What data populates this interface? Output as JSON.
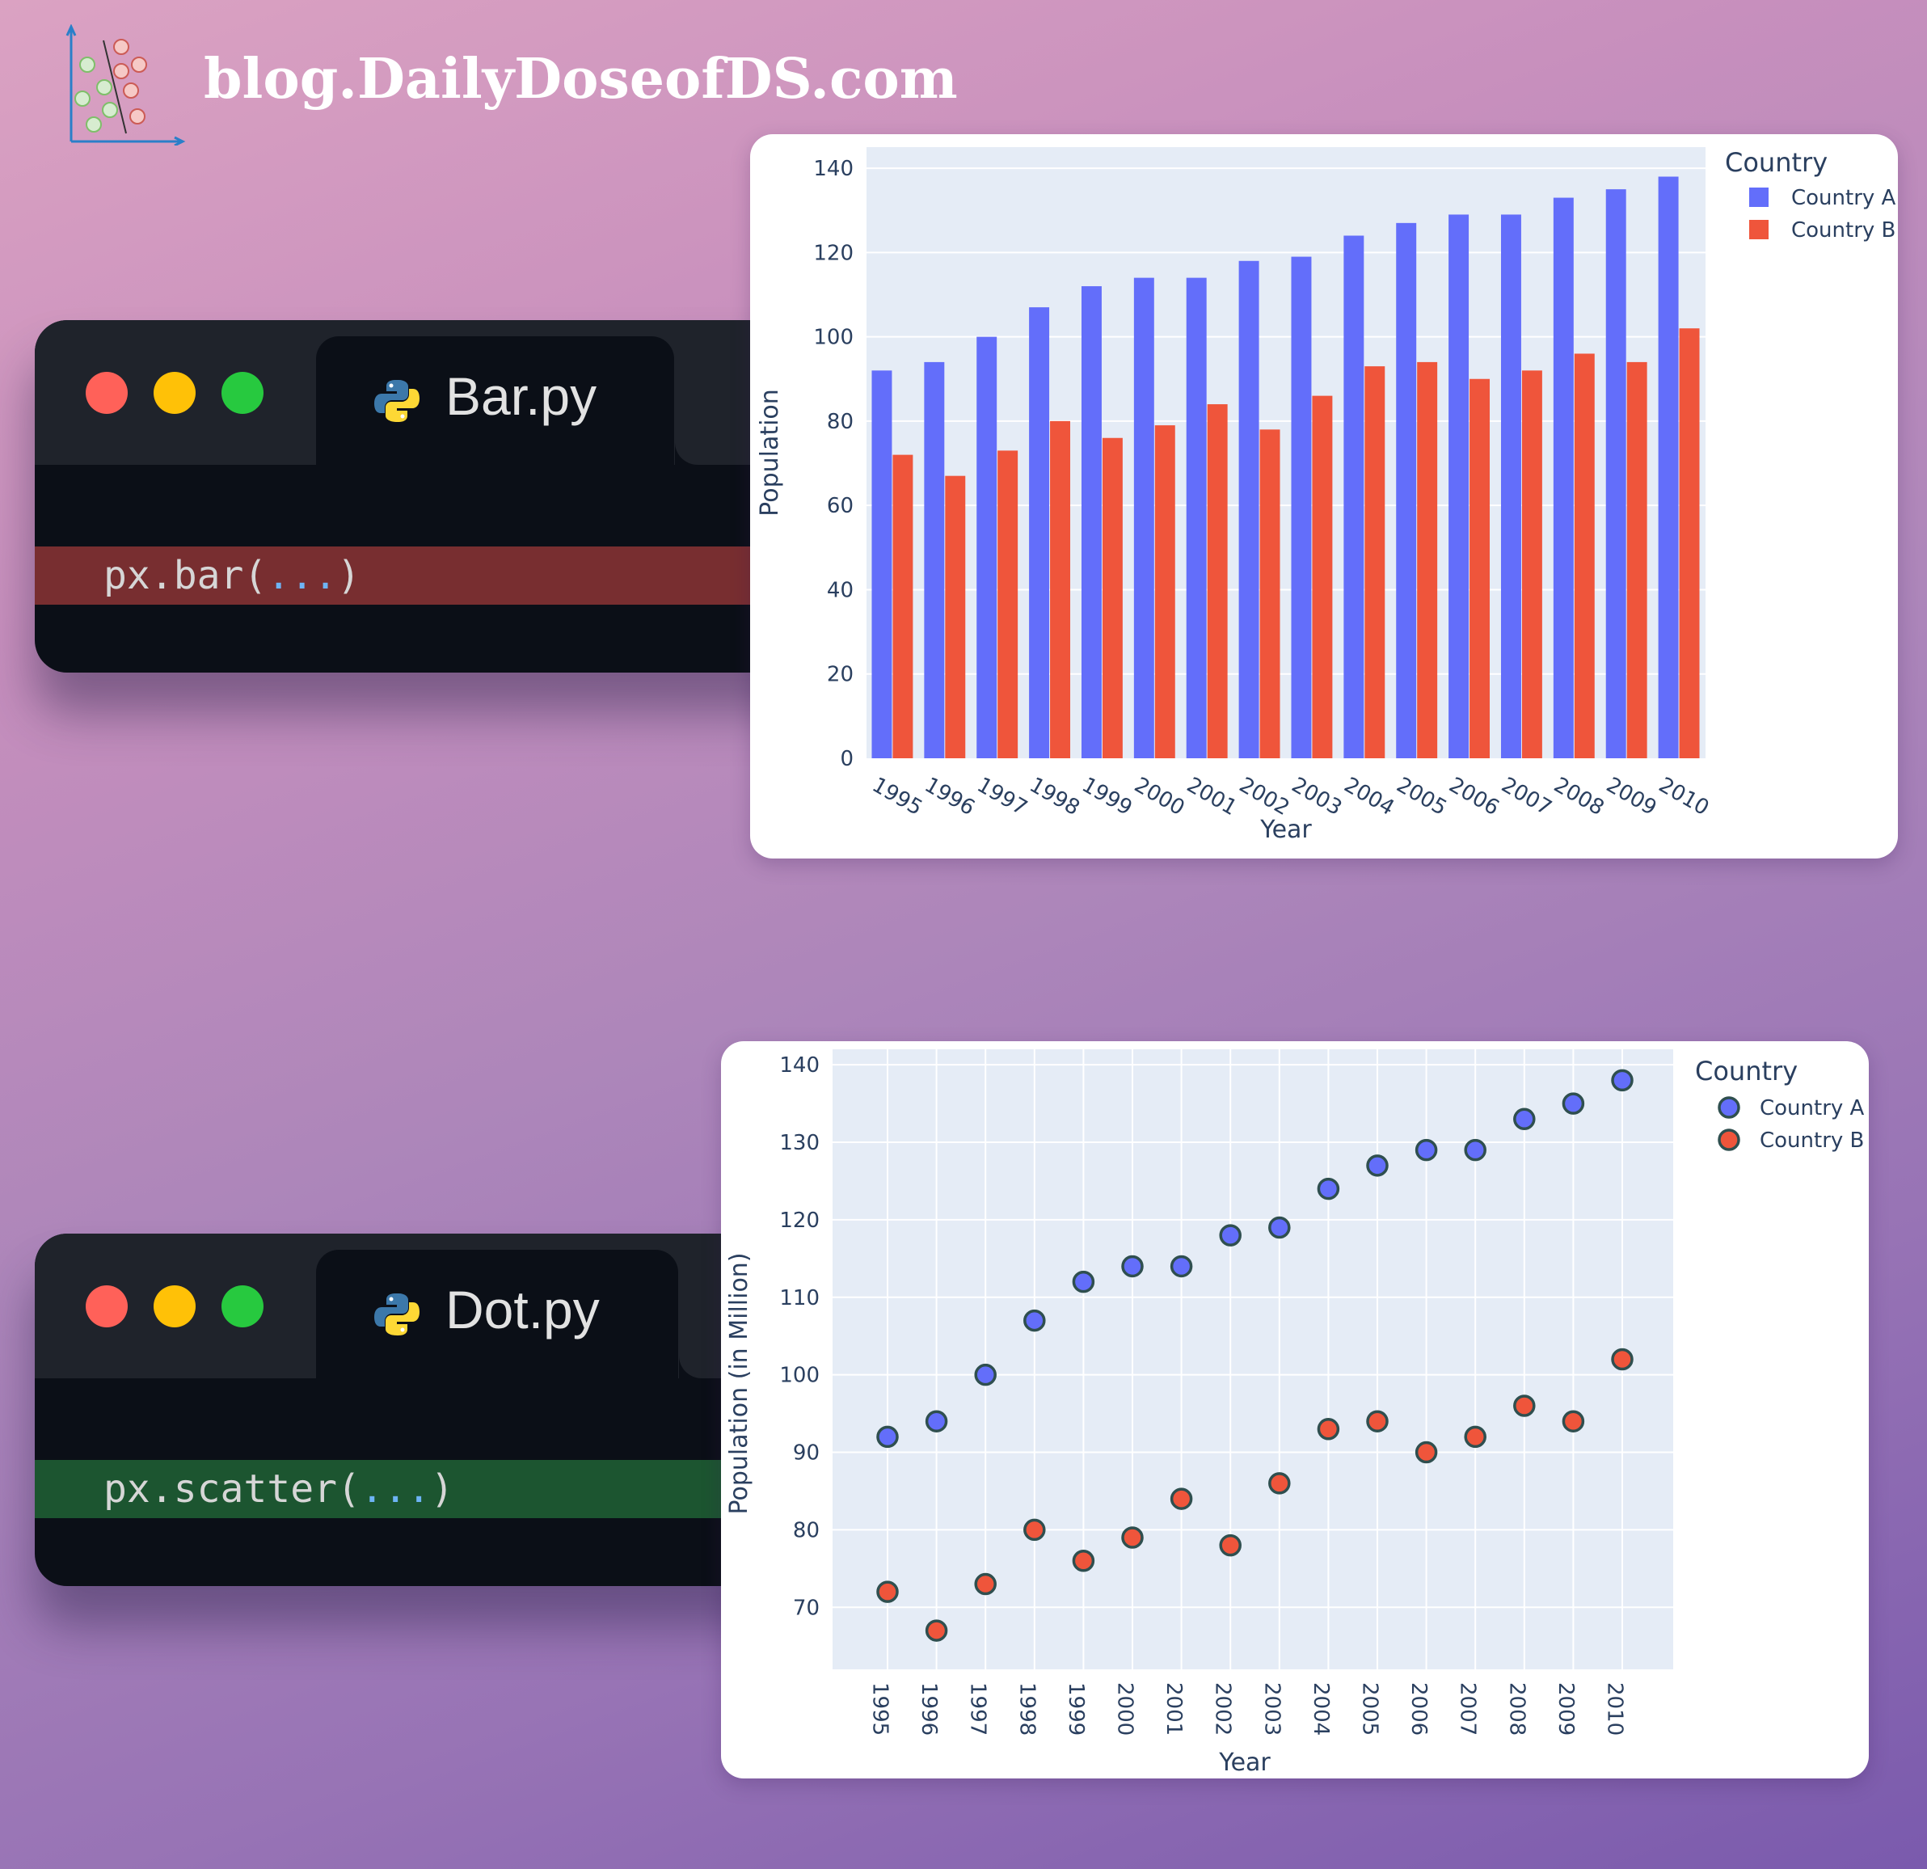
{
  "brand": {
    "text": "blog.DailyDoseofDS.com",
    "logo_icon": "scatter-classifier-logo"
  },
  "windows": [
    {
      "id": "bar-window",
      "traffic_lights": [
        "#ff6159",
        "#ffc107",
        "#27c93f"
      ],
      "tab": {
        "icon": "python-icon",
        "label": "Bar.py"
      },
      "code": {
        "prefix": "px.bar(",
        "args": "...",
        "suffix": ")"
      },
      "highlight_color": "#782e30"
    },
    {
      "id": "scatter-window",
      "traffic_lights": [
        "#ff6159",
        "#ffc107",
        "#27c93f"
      ],
      "tab": {
        "icon": "python-icon",
        "label": "Dot.py"
      },
      "code": {
        "prefix": "px.scatter(",
        "args": "...",
        "suffix": ")"
      },
      "highlight_color": "#1c5530"
    }
  ],
  "colors": {
    "country_a": "#636efa",
    "country_b": "#ef553b",
    "plot_bg": "#e5ecf6",
    "axis_text": "#2a3f5f",
    "marker_outline": "#2f4f4f"
  },
  "chart_data": [
    {
      "type": "bar",
      "title": "",
      "xlabel": "Year",
      "ylabel": "Population",
      "ylim": [
        0,
        145
      ],
      "yticks": [
        0,
        20,
        40,
        60,
        80,
        100,
        120,
        140
      ],
      "grid": true,
      "barmode": "group",
      "x_tick_angle": 30,
      "legend": {
        "title": "Country",
        "position": "right-top",
        "entries": [
          "Country A",
          "Country B"
        ]
      },
      "categories": [
        "1995",
        "1996",
        "1997",
        "1998",
        "1999",
        "2000",
        "2001",
        "2002",
        "2003",
        "2004",
        "2005",
        "2006",
        "2007",
        "2008",
        "2009",
        "2010"
      ],
      "series": [
        {
          "name": "Country A",
          "color": "#636efa",
          "values": [
            92,
            94,
            100,
            107,
            112,
            114,
            114,
            118,
            119,
            124,
            127,
            129,
            129,
            133,
            135,
            138
          ]
        },
        {
          "name": "Country B",
          "color": "#ef553b",
          "values": [
            72,
            67,
            73,
            80,
            76,
            79,
            84,
            78,
            86,
            93,
            94,
            90,
            92,
            96,
            94,
            102
          ]
        }
      ]
    },
    {
      "type": "scatter",
      "title": "",
      "xlabel": "Year",
      "ylabel": "Population (in Million)",
      "ylim": [
        62,
        142
      ],
      "yticks": [
        70,
        80,
        90,
        100,
        110,
        120,
        130,
        140
      ],
      "grid": true,
      "x_tick_angle": 90,
      "legend": {
        "title": "Country",
        "position": "right-top",
        "entries": [
          "Country A",
          "Country B"
        ]
      },
      "categories": [
        "1995",
        "1996",
        "1997",
        "1998",
        "1999",
        "2000",
        "2001",
        "2002",
        "2003",
        "2004",
        "2005",
        "2006",
        "2007",
        "2008",
        "2009",
        "2010"
      ],
      "series": [
        {
          "name": "Country A",
          "color": "#636efa",
          "values": [
            92,
            94,
            100,
            107,
            112,
            114,
            114,
            118,
            119,
            124,
            127,
            129,
            129,
            133,
            135,
            138
          ]
        },
        {
          "name": "Country B",
          "color": "#ef553b",
          "values": [
            72,
            67,
            73,
            80,
            76,
            79,
            84,
            78,
            86,
            93,
            94,
            90,
            92,
            96,
            94,
            102
          ]
        }
      ]
    }
  ]
}
